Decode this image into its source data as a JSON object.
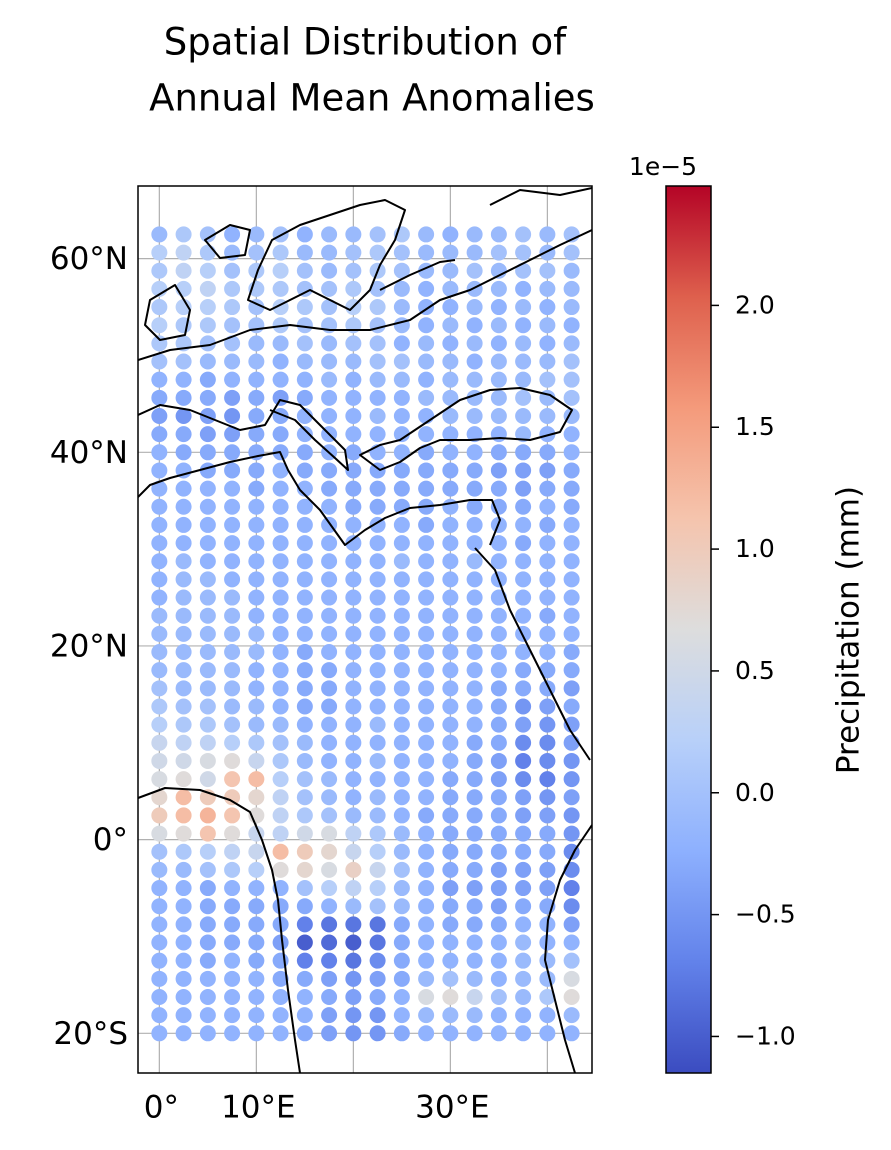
{
  "chart_data": {
    "type": "scatter-map",
    "title": [
      "Spatial Distribution of",
      "Annual Mean Anomalies"
    ],
    "colorbar_label": "Precipitation (mm)",
    "colorbar_offset_label": "1e−5",
    "colormap": "coolwarm",
    "clim": [
      -1.15,
      2.49
    ],
    "cticks": [
      {
        "value": -1.0,
        "label": "−1.0"
      },
      {
        "value": -0.5,
        "label": "−0.5"
      },
      {
        "value": 0,
        "label": "0.0"
      },
      {
        "value": 0.5,
        "label": "0.5"
      },
      {
        "value": 1.0,
        "label": "1.0"
      },
      {
        "value": 1.5,
        "label": "1.5"
      },
      {
        "value": 2.0,
        "label": "2.0"
      }
    ],
    "xlim": [
      -2.2,
      44.6
    ],
    "ylim": [
      -24.1,
      67.5
    ],
    "xticks": [
      {
        "value": 0,
        "label": "0°"
      },
      {
        "value": 10,
        "label": "10°E"
      },
      {
        "value": 30,
        "label": "30°E"
      }
    ],
    "yticks": [
      {
        "value": 60,
        "label": "60°N"
      },
      {
        "value": 40,
        "label": "40°N"
      },
      {
        "value": 20,
        "label": "20°N"
      },
      {
        "value": 0,
        "label": "0°"
      },
      {
        "value": -20,
        "label": "20°S"
      }
    ],
    "xgrid": [
      0,
      10,
      20,
      30,
      40
    ],
    "ygrid": [
      60,
      40,
      20,
      0,
      -20
    ],
    "grid": true,
    "x": [
      0,
      2.5,
      5,
      7.5,
      10,
      12.5,
      15,
      17.5,
      20,
      22.5,
      25,
      27.5,
      30,
      32.5,
      35,
      37.5,
      40,
      42.5
    ],
    "y": [
      62.5,
      60.625,
      58.75,
      56.875,
      55,
      53.125,
      51.25,
      49.375,
      47.5,
      45.625,
      43.75,
      41.875,
      40,
      38.125,
      36.25,
      34.375,
      32.5,
      30.625,
      28.75,
      26.875,
      25,
      23.125,
      21.25,
      19.375,
      17.5,
      15.625,
      13.75,
      11.875,
      10,
      8.125,
      6.25,
      4.375,
      2.5,
      0.625,
      -1.25,
      -3.125,
      -5,
      -6.875,
      -8.75,
      -10.625,
      -12.5,
      -14.375,
      -16.25,
      -18.125,
      -20
    ],
    "values": [
      [
        -0.1,
        0.1,
        0,
        -0.2,
        -0.1,
        0,
        -0.2,
        -0.1,
        -0.1,
        0,
        0.1,
        -0.1,
        -0.2,
        -0.1,
        -0.1,
        0,
        -0.1,
        0
      ],
      [
        0.2,
        0.3,
        0.1,
        -0.1,
        0,
        0.1,
        -0.1,
        -0.1,
        0,
        0.1,
        0,
        -0.1,
        -0.1,
        -0.1,
        0,
        0,
        -0.1,
        0
      ],
      [
        0.1,
        0.3,
        0.2,
        0,
        0.1,
        0.2,
        0,
        -0.1,
        0,
        0.1,
        0,
        -0.1,
        -0.1,
        0,
        -0.1,
        0,
        0,
        -0.1
      ],
      [
        0.2,
        0.2,
        0.3,
        0.1,
        0.1,
        0.1,
        0,
        0,
        0.1,
        0,
        -0.1,
        -0.2,
        -0.1,
        -0.1,
        -0.1,
        -0.2,
        -0.1,
        -0.1
      ],
      [
        0.1,
        0.2,
        0.2,
        0.1,
        0,
        0.2,
        0.1,
        0,
        0.2,
        0.1,
        -0.1,
        -0.2,
        -0.2,
        -0.1,
        -0.2,
        -0.1,
        -0.2,
        -0.1
      ],
      [
        0.2,
        0.1,
        0.1,
        0,
        0,
        0.1,
        0,
        0,
        0.1,
        0,
        -0.1,
        -0.2,
        -0.1,
        -0.2,
        -0.1,
        -0.2,
        -0.1,
        -0.2
      ],
      [
        0.1,
        0.1,
        0,
        0,
        -0.1,
        -0.1,
        0,
        -0.1,
        0,
        0,
        -0.2,
        -0.1,
        -0.2,
        -0.1,
        -0.2,
        -0.1,
        -0.2,
        -0.1
      ],
      [
        0,
        0,
        -0.1,
        -0.1,
        -0.1,
        -0.2,
        -0.1,
        -0.1,
        -0.1,
        0,
        0,
        -0.1,
        -0.1,
        -0.2,
        -0.1,
        -0.1,
        -0.1,
        0
      ],
      [
        -0.2,
        -0.2,
        -0.3,
        -0.2,
        -0.2,
        -0.2,
        -0.2,
        -0.1,
        -0.2,
        -0.1,
        -0.1,
        -0.2,
        -0.1,
        -0.1,
        -0.1,
        -0.1,
        0,
        0
      ],
      [
        -0.3,
        -0.3,
        -0.3,
        -0.4,
        -0.3,
        -0.4,
        -0.3,
        -0.2,
        -0.2,
        -0.2,
        -0.2,
        -0.1,
        -0.1,
        -0.1,
        -0.1,
        0,
        -0.1,
        0
      ],
      [
        -0.4,
        -0.5,
        -0.4,
        -0.5,
        -0.3,
        -0.3,
        -0.2,
        -0.2,
        -0.2,
        -0.1,
        -0.2,
        -0.2,
        -0.1,
        -0.1,
        -0.1,
        -0.1,
        -0.1,
        -0.1
      ],
      [
        -0.3,
        -0.3,
        -0.4,
        -0.4,
        -0.3,
        -0.3,
        -0.2,
        -0.2,
        -0.2,
        -0.2,
        -0.2,
        -0.2,
        -0.2,
        -0.2,
        -0.2,
        -0.1,
        -0.2,
        -0.2
      ],
      [
        -0.2,
        -0.3,
        -0.3,
        -0.3,
        -0.3,
        -0.3,
        -0.3,
        -0.2,
        -0.3,
        -0.2,
        -0.2,
        -0.3,
        -0.2,
        -0.2,
        -0.3,
        -0.3,
        -0.3,
        -0.2
      ],
      [
        -0.2,
        -0.2,
        -0.3,
        -0.3,
        -0.3,
        -0.2,
        -0.3,
        -0.3,
        -0.3,
        -0.3,
        -0.3,
        -0.3,
        -0.3,
        -0.3,
        -0.4,
        -0.4,
        -0.4,
        -0.3
      ],
      [
        -0.2,
        -0.2,
        -0.2,
        -0.2,
        -0.3,
        -0.2,
        -0.2,
        -0.3,
        -0.3,
        -0.3,
        -0.3,
        -0.3,
        -0.3,
        -0.3,
        -0.3,
        -0.4,
        -0.3,
        -0.3
      ],
      [
        -0.2,
        -0.2,
        -0.2,
        -0.2,
        -0.2,
        -0.2,
        -0.2,
        -0.2,
        -0.3,
        -0.3,
        -0.3,
        -0.3,
        -0.2,
        -0.3,
        -0.3,
        -0.3,
        -0.2,
        -0.3
      ],
      [
        -0.2,
        -0.2,
        -0.2,
        -0.2,
        -0.2,
        -0.2,
        -0.2,
        -0.2,
        -0.2,
        -0.2,
        -0.2,
        -0.3,
        -0.2,
        -0.2,
        -0.2,
        -0.2,
        -0.3,
        -0.2
      ],
      [
        -0.2,
        -0.2,
        -0.2,
        -0.2,
        -0.2,
        -0.2,
        -0.2,
        -0.2,
        -0.2,
        -0.2,
        -0.2,
        -0.2,
        -0.2,
        -0.2,
        -0.2,
        -0.3,
        -0.2,
        -0.2
      ],
      [
        -0.2,
        -0.1,
        -0.2,
        -0.2,
        -0.2,
        -0.2,
        -0.2,
        -0.2,
        -0.2,
        -0.2,
        -0.1,
        -0.2,
        -0.2,
        -0.1,
        -0.2,
        -0.2,
        -0.2,
        -0.2
      ],
      [
        -0.2,
        -0.1,
        -0.1,
        -0.2,
        -0.2,
        -0.2,
        -0.2,
        -0.2,
        -0.2,
        -0.2,
        -0.2,
        -0.2,
        -0.2,
        -0.2,
        -0.2,
        -0.2,
        -0.2,
        -0.2
      ],
      [
        -0.2,
        -0.1,
        -0.1,
        -0.1,
        -0.2,
        -0.2,
        -0.2,
        -0.2,
        -0.2,
        -0.2,
        -0.2,
        -0.2,
        -0.2,
        -0.2,
        -0.2,
        -0.2,
        -0.2,
        -0.2
      ],
      [
        -0.1,
        -0.1,
        -0.1,
        -0.1,
        -0.2,
        -0.2,
        -0.2,
        -0.2,
        -0.2,
        -0.2,
        -0.2,
        -0.2,
        -0.2,
        -0.2,
        -0.2,
        -0.2,
        -0.3,
        -0.2
      ],
      [
        -0.1,
        -0.1,
        -0.1,
        -0.1,
        -0.1,
        -0.2,
        -0.2,
        -0.2,
        -0.2,
        -0.2,
        -0.2,
        -0.2,
        -0.2,
        -0.2,
        -0.2,
        -0.2,
        -0.2,
        -0.2
      ],
      [
        -0.1,
        -0.1,
        -0.1,
        -0.1,
        -0.1,
        -0.2,
        -0.3,
        -0.2,
        -0.2,
        -0.2,
        -0.2,
        -0.2,
        -0.2,
        -0.2,
        -0.2,
        -0.2,
        -0.2,
        -0.3
      ],
      [
        -0.1,
        -0.1,
        -0.1,
        -0.1,
        -0.2,
        -0.2,
        -0.3,
        -0.3,
        -0.2,
        -0.2,
        -0.2,
        -0.2,
        -0.2,
        -0.2,
        -0.2,
        -0.3,
        -0.3,
        -0.3
      ],
      [
        0,
        -0.1,
        -0.1,
        -0.1,
        -0.2,
        -0.2,
        -0.3,
        -0.3,
        -0.2,
        -0.2,
        -0.2,
        -0.2,
        -0.2,
        -0.2,
        -0.3,
        -0.3,
        -0.3,
        -0.4
      ],
      [
        0.1,
        0,
        0,
        -0.1,
        -0.1,
        -0.2,
        -0.3,
        -0.3,
        -0.2,
        -0.2,
        -0.2,
        -0.2,
        -0.2,
        -0.2,
        -0.3,
        -0.5,
        -0.4,
        -0.3
      ],
      [
        0.2,
        0.1,
        0.1,
        0,
        -0.1,
        -0.1,
        -0.2,
        -0.2,
        -0.2,
        -0.1,
        -0.2,
        -0.2,
        -0.2,
        -0.2,
        -0.3,
        -0.4,
        -0.5,
        -0.4
      ],
      [
        0.4,
        0.3,
        0.3,
        0.2,
        0.1,
        0,
        -0.1,
        -0.2,
        -0.2,
        -0.2,
        -0.2,
        -0.2,
        -0.2,
        -0.3,
        -0.3,
        -0.6,
        -0.6,
        -0.4
      ],
      [
        0.5,
        0.5,
        0.6,
        0.7,
        0.4,
        0.1,
        -0.1,
        -0.2,
        -0.2,
        -0.1,
        -0.2,
        -0.2,
        -0.2,
        -0.3,
        -0.4,
        -0.7,
        -0.6,
        -0.5
      ],
      [
        0.6,
        0.7,
        0.5,
        1.1,
        1.2,
        0.2,
        0,
        -0.1,
        -0.2,
        -0.2,
        -0.2,
        -0.2,
        -0.3,
        -0.3,
        -0.4,
        -0.6,
        -0.7,
        -0.5
      ],
      [
        0.8,
        1.2,
        1.0,
        1.0,
        0.8,
        0.3,
        0,
        -0.1,
        -0.2,
        -0.1,
        -0.2,
        -0.2,
        -0.3,
        -0.3,
        -0.3,
        -0.4,
        -0.5,
        -0.4
      ],
      [
        1.0,
        1.2,
        1.3,
        1.1,
        0.7,
        0.3,
        0.1,
        0,
        -0.1,
        -0.1,
        -0.2,
        -0.3,
        -0.3,
        -0.3,
        -0.3,
        -0.4,
        -0.4,
        -0.5
      ],
      [
        0.6,
        0.7,
        1.1,
        0.7,
        0.4,
        0.3,
        0.5,
        0.6,
        0.3,
        0.1,
        -0.1,
        -0.2,
        -0.3,
        -0.3,
        -0.3,
        -0.3,
        -0.3,
        -0.5
      ],
      [
        0,
        0.1,
        0.2,
        0.3,
        0.4,
        1.2,
        1.0,
        0.8,
        0.4,
        0.2,
        -0.1,
        -0.2,
        -0.3,
        -0.3,
        -0.3,
        -0.3,
        -0.3,
        -0.6
      ],
      [
        -0.1,
        -0.1,
        0,
        0.1,
        0.2,
        0.7,
        0.8,
        0.6,
        0.9,
        0.4,
        0,
        -0.2,
        -0.3,
        -0.3,
        -0.4,
        -0.4,
        -0.4,
        -0.6
      ],
      [
        -0.2,
        -0.2,
        -0.3,
        -0.2,
        -0.2,
        -0.2,
        0,
        0.2,
        0.3,
        0.2,
        -0.1,
        -0.2,
        -0.4,
        -0.4,
        -0.4,
        -0.4,
        -0.4,
        -0.7
      ],
      [
        -0.2,
        -0.2,
        -0.3,
        -0.3,
        -0.3,
        -0.3,
        -0.3,
        -0.2,
        -0.1,
        0,
        -0.1,
        -0.2,
        -0.3,
        -0.3,
        -0.4,
        -0.3,
        -0.3,
        -0.6
      ],
      [
        -0.2,
        -0.2,
        -0.3,
        -0.3,
        -0.3,
        -0.3,
        -0.7,
        -0.8,
        -0.8,
        -0.8,
        -0.3,
        -0.2,
        -0.3,
        -0.3,
        -0.3,
        -0.2,
        -0.2,
        -0.4
      ],
      [
        -0.2,
        -0.2,
        -0.3,
        -0.3,
        -0.3,
        -0.4,
        -1.0,
        -0.9,
        -1.0,
        -0.8,
        -0.3,
        -0.2,
        -0.2,
        -0.2,
        -0.2,
        -0.1,
        -0.2,
        -0.2
      ],
      [
        -0.2,
        -0.2,
        -0.3,
        -0.2,
        -0.3,
        -0.3,
        -0.7,
        -0.7,
        -0.8,
        -0.6,
        -0.3,
        -0.2,
        -0.2,
        -0.2,
        -0.2,
        -0.1,
        -0.1,
        0
      ],
      [
        -0.2,
        -0.2,
        -0.2,
        -0.2,
        -0.2,
        -0.3,
        -0.3,
        -0.4,
        -0.5,
        -0.4,
        -0.3,
        -0.1,
        0,
        -0.1,
        -0.2,
        -0.1,
        -0.1,
        0.6
      ],
      [
        -0.2,
        -0.2,
        -0.2,
        -0.2,
        -0.2,
        -0.2,
        -0.2,
        -0.3,
        -0.4,
        -0.3,
        -0.2,
        0.6,
        0.7,
        0.4,
        0,
        -0.1,
        0.1,
        0.7
      ],
      [
        -0.2,
        -0.2,
        -0.2,
        -0.2,
        -0.2,
        -0.2,
        -0.2,
        -0.4,
        -0.5,
        -0.5,
        -0.2,
        -0.1,
        -0.1,
        -0.1,
        -0.2,
        -0.2,
        -0.2,
        -0.1
      ],
      [
        -0.2,
        -0.2,
        -0.2,
        -0.2,
        -0.2,
        -0.2,
        -0.3,
        -0.4,
        -0.5,
        -0.5,
        -0.3,
        -0.2,
        -0.2,
        -0.2,
        -0.2,
        -0.2,
        -0.2,
        -0.2
      ]
    ]
  }
}
